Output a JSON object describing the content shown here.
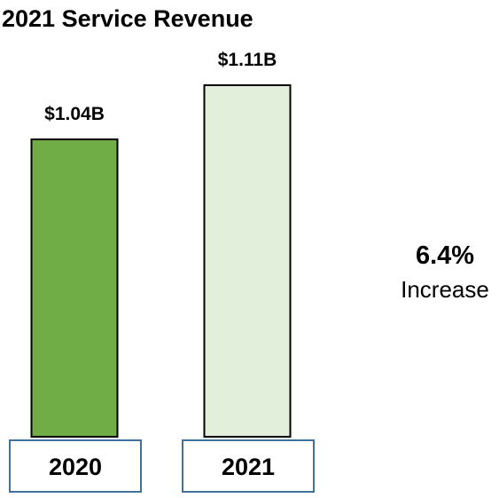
{
  "chart_data": {
    "type": "bar",
    "title": "2021 Service Revenue",
    "categories": [
      "2020",
      "2021"
    ],
    "values": [
      1.04,
      1.11
    ],
    "value_labels": [
      "$1.04B",
      "$1.11B"
    ],
    "unit": "B",
    "ylim": [
      0,
      1.11
    ],
    "grid": false,
    "bar_colors": [
      "#70ad47",
      "#e2efda"
    ],
    "bar_border_color": "#000000",
    "category_box_border_color": "#41719c",
    "annotation": {
      "value": "6.4%",
      "label": "Increase"
    }
  }
}
